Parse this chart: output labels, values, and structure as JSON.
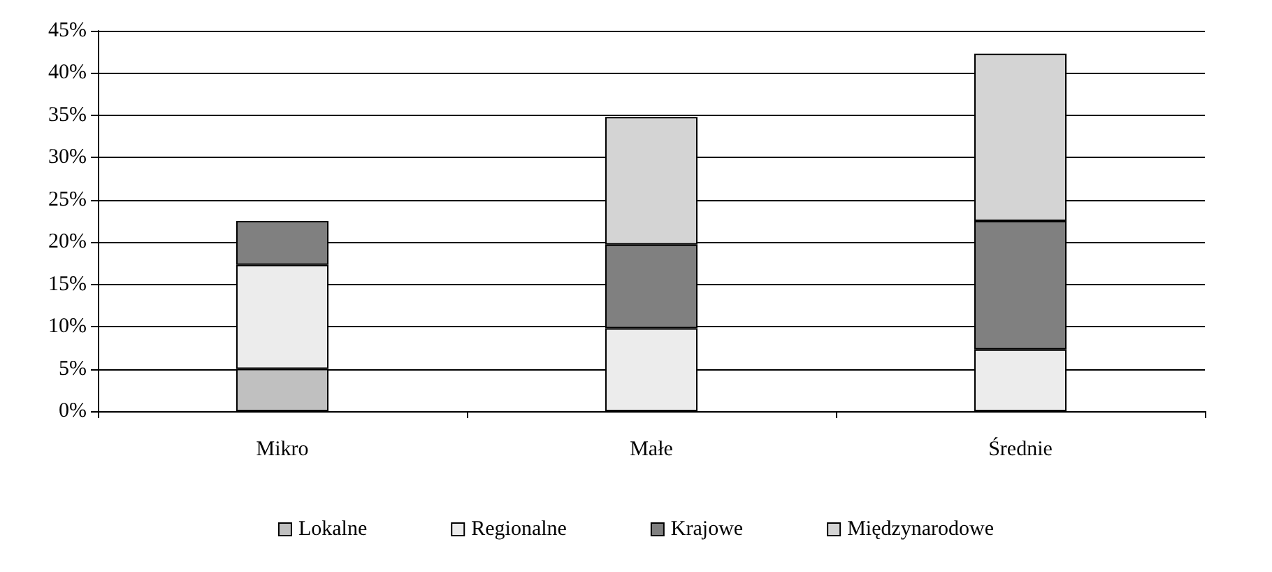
{
  "chart_data": {
    "type": "bar",
    "stacked": true,
    "categories": [
      "Mikro",
      "Małe",
      "Średnie"
    ],
    "series": [
      {
        "name": "Lokalne",
        "color": "#c0c0c0",
        "values": [
          5.0,
          0,
          0
        ]
      },
      {
        "name": "Regionalne",
        "color": "#ececec",
        "values": [
          12.3,
          9.8,
          7.3
        ]
      },
      {
        "name": "Krajowe",
        "color": "#808080",
        "values": [
          5.2,
          9.9,
          15.2
        ]
      },
      {
        "name": "Międzynarodowe",
        "color": "#d4d4d4",
        "values": [
          0,
          15.1,
          19.8
        ]
      }
    ],
    "ylim": [
      0,
      45
    ],
    "yticks": [
      {
        "value": 0,
        "label": "0%"
      },
      {
        "value": 5,
        "label": "5%"
      },
      {
        "value": 10,
        "label": "10%"
      },
      {
        "value": 15,
        "label": "15%"
      },
      {
        "value": 20,
        "label": "20%"
      },
      {
        "value": 25,
        "label": "25%"
      },
      {
        "value": 30,
        "label": "30%"
      },
      {
        "value": 35,
        "label": "35%"
      },
      {
        "value": 40,
        "label": "40%"
      },
      {
        "value": 45,
        "label": "45%"
      }
    ],
    "grid": "y",
    "legend": "bottom"
  }
}
